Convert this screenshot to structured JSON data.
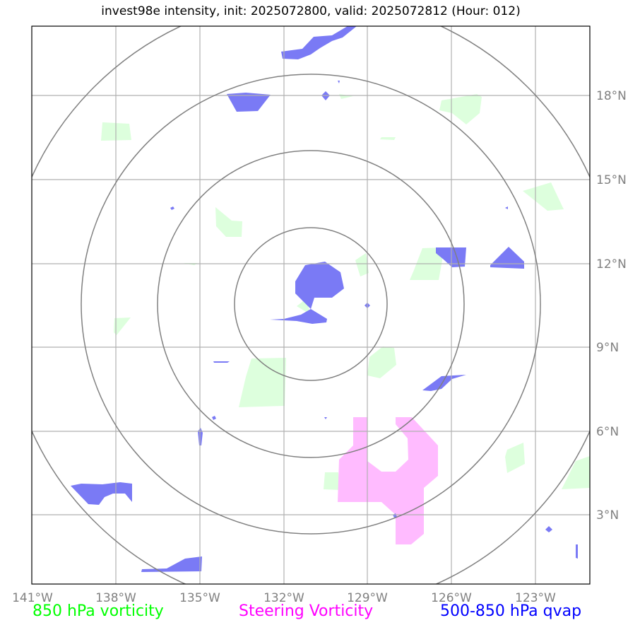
{
  "title": "invest98e intensity, init: 2025072800, valid: 2025072812 (Hour: 012)",
  "lon_ticks": [
    "141°W",
    "138°W",
    "135°W",
    "132°W",
    "129°W",
    "126°W",
    "123°W"
  ],
  "lat_ticks": [
    "18°N",
    "15°N",
    "12°N",
    "9°N",
    "6°N",
    "3°N"
  ],
  "legend": {
    "vort850": {
      "label": "850 hPa vorticity",
      "color": "#00ff00"
    },
    "steering": {
      "label": "Steering Vorticity",
      "color": "#ff00ff"
    },
    "qvap": {
      "label": "500-850 hPa qvap",
      "color": "#0000ff"
    }
  },
  "colors": {
    "vort850_fill": "#ddffdd",
    "steering_fill": "#ffbbff",
    "qvap_fill": "#7a7af5",
    "grid": "#b0b0b0",
    "range_rings": "#808080",
    "tick_label": "#808080"
  },
  "map_extent": {
    "lon_min": -141,
    "lon_max": -121,
    "lat_min": 0.7,
    "lat_max": 20.7
  },
  "storm_center": {
    "lon": -131.1,
    "lat": 10.5
  },
  "range_ring_count": 4
}
